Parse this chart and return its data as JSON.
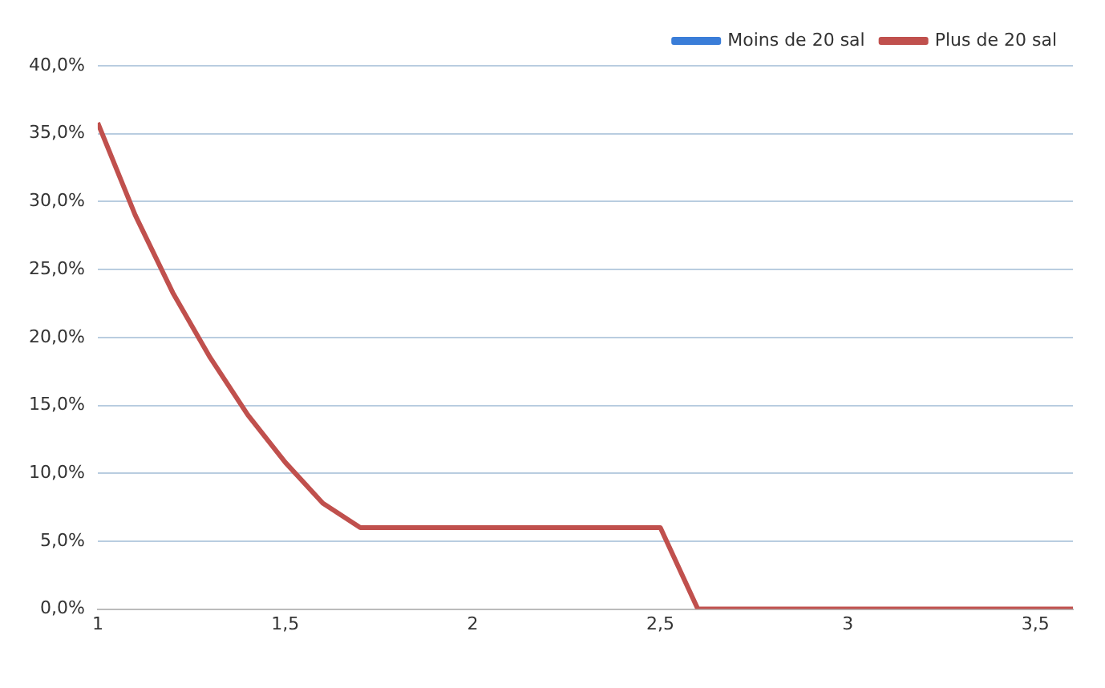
{
  "chart_data": {
    "type": "line",
    "x": [
      1,
      1.1,
      1.2,
      1.3,
      1.4,
      1.5,
      1.6,
      1.7,
      1.8,
      1.9,
      2,
      2.1,
      2.2,
      2.3,
      2.4,
      2.5,
      2.6,
      2.7,
      2.8,
      2.9,
      3,
      3.1,
      3.2,
      3.3,
      3.4,
      3.5,
      3.6
    ],
    "series": [
      {
        "name": "Moins de 20 sal",
        "color": "#3a7dd8",
        "values": [
          null,
          null,
          null,
          null,
          null,
          null,
          null,
          null,
          null,
          null,
          null,
          null,
          null,
          null,
          null,
          null,
          null,
          null,
          null,
          null,
          null,
          null,
          null,
          null,
          null,
          null,
          null
        ]
      },
      {
        "name": "Plus de 20 sal",
        "color": "#c0504d",
        "values": [
          35.8,
          29,
          23.3,
          18.5,
          14.3,
          10.8,
          7.8,
          6,
          6,
          6,
          6,
          6,
          6,
          6,
          6,
          6,
          0,
          0,
          0,
          0,
          0,
          0,
          0,
          0,
          0,
          0,
          0
        ]
      }
    ],
    "xlim": [
      1,
      3.6
    ],
    "xticks": [
      1,
      {
        "value": 1.5,
        "label": "1,5"
      },
      2,
      {
        "value": 2.5,
        "label": "2,5"
      },
      3,
      {
        "value": 3.5,
        "label": "3,5"
      }
    ],
    "ylim": [
      0,
      40
    ],
    "yticks": [
      {
        "value": 0,
        "label": "0,0%"
      },
      {
        "value": 5,
        "label": "5,0%"
      },
      {
        "value": 10,
        "label": "10,0%"
      },
      {
        "value": 15,
        "label": "15,0%"
      },
      {
        "value": 20,
        "label": "20,0%"
      },
      {
        "value": 25,
        "label": "25,0%"
      },
      {
        "value": 30,
        "label": "30,0%"
      },
      {
        "value": 35,
        "label": "35,0%"
      },
      {
        "value": 40,
        "label": "40,0%"
      }
    ],
    "grid": "y",
    "legend": "top right",
    "marker": "none",
    "line_style": "solid"
  }
}
